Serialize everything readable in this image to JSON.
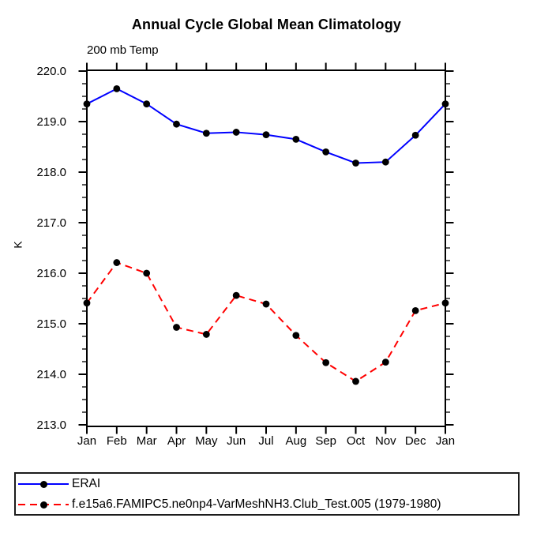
{
  "chart_data": {
    "type": "line",
    "title": "Annual Cycle Global Mean Climatology",
    "subtitle": "200 mb Temp",
    "ylabel": "K",
    "categories": [
      "Jan",
      "Feb",
      "Mar",
      "Apr",
      "May",
      "Jun",
      "Jul",
      "Aug",
      "Sep",
      "Oct",
      "Nov",
      "Dec",
      "Jan"
    ],
    "ylim": [
      213.0,
      220.0
    ],
    "y_major_ticks": [
      213,
      214,
      215,
      216,
      217,
      218,
      219,
      220
    ],
    "y_ticklabels": [
      "213.0",
      "214.0",
      "215.0",
      "216.0",
      "217.0",
      "218.0",
      "219.0",
      "220.0"
    ],
    "y_minor_step": 0.25,
    "grid": false,
    "legend_position": "bottom-left",
    "series": [
      {
        "name": "ERAI",
        "color": "#0000ff",
        "style": "solid",
        "marker": "filled-circle",
        "marker_color": "#000000",
        "values": [
          219.35,
          219.65,
          219.35,
          218.95,
          218.77,
          218.79,
          218.74,
          218.65,
          218.4,
          218.18,
          218.2,
          218.73,
          219.35
        ]
      },
      {
        "name": "f.e15a6.FAMIPC5.ne0np4-VarMeshNH3.Club_Test.005 (1979-1980)",
        "color": "#ff0000",
        "style": "dashed",
        "marker": "filled-circle",
        "marker_color": "#000000",
        "values": [
          215.41,
          216.21,
          216.0,
          214.93,
          214.79,
          215.56,
          215.39,
          214.77,
          214.23,
          213.86,
          214.24,
          215.26,
          215.41
        ]
      }
    ]
  },
  "colors": {
    "background": "#ffffff",
    "axis": "#000000",
    "text": "#000000",
    "erai_line": "#0000ff",
    "model_line": "#ff0000",
    "marker": "#000000"
  }
}
